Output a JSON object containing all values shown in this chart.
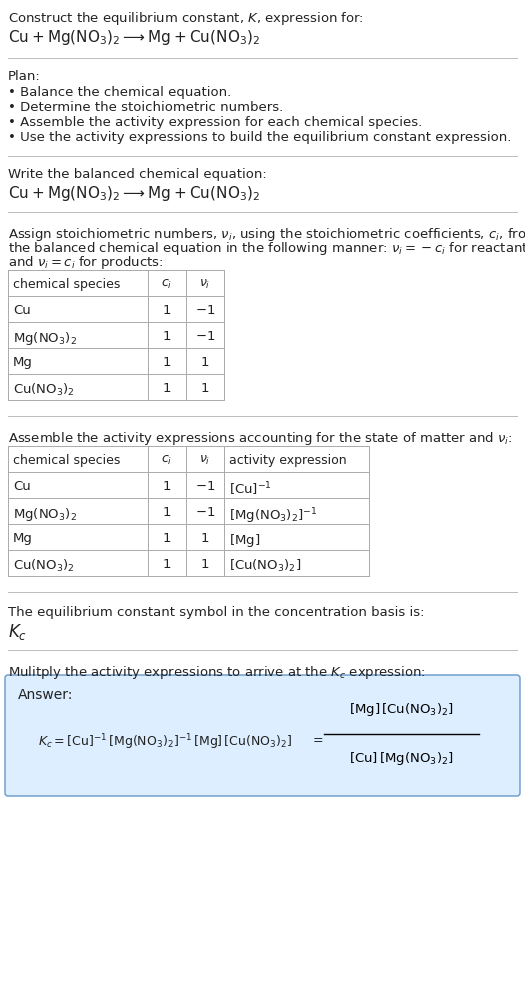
{
  "bg_color": "#ffffff",
  "text_color": "#000000",
  "title_line1": "Construct the equilibrium constant, $K$, expression for:",
  "title_line2": "$\\mathrm{Cu + Mg(NO_3)_2 \\longrightarrow Mg + Cu(NO_3)_2}$",
  "plan_header": "Plan:",
  "plan_items": [
    "• Balance the chemical equation.",
    "• Determine the stoichiometric numbers.",
    "• Assemble the activity expression for each chemical species.",
    "• Use the activity expressions to build the equilibrium constant expression."
  ],
  "section2_header": "Write the balanced chemical equation:",
  "section2_eq": "$\\mathrm{Cu + Mg(NO_3)_2 \\longrightarrow Mg + Cu(NO_3)_2}$",
  "section3_text1": "Assign stoichiometric numbers, $\\nu_i$, using the stoichiometric coefficients, $c_i$, from",
  "section3_text2": "the balanced chemical equation in the following manner: $\\nu_i = -c_i$ for reactants",
  "section3_text3": "and $\\nu_i = c_i$ for products:",
  "table1_headers": [
    "chemical species",
    "$c_i$",
    "$\\nu_i$"
  ],
  "table1_rows": [
    [
      "Cu",
      "1",
      "$-1$"
    ],
    [
      "$\\mathrm{Mg(NO_3)_2}$",
      "1",
      "$-1$"
    ],
    [
      "Mg",
      "1",
      "1"
    ],
    [
      "$\\mathrm{Cu(NO_3)_2}$",
      "1",
      "1"
    ]
  ],
  "section4_text": "Assemble the activity expressions accounting for the state of matter and $\\nu_i$:",
  "table2_headers": [
    "chemical species",
    "$c_i$",
    "$\\nu_i$",
    "activity expression"
  ],
  "table2_rows": [
    [
      "Cu",
      "1",
      "$-1$",
      "$[\\mathrm{Cu}]^{-1}$"
    ],
    [
      "$\\mathrm{Mg(NO_3)_2}$",
      "1",
      "$-1$",
      "$[\\mathrm{Mg(NO_3)_2}]^{-1}$"
    ],
    [
      "Mg",
      "1",
      "1",
      "$[\\mathrm{Mg}]$"
    ],
    [
      "$\\mathrm{Cu(NO_3)_2}$",
      "1",
      "1",
      "$[\\mathrm{Cu(NO_3)_2}]$"
    ]
  ],
  "section5_text1": "The equilibrium constant symbol in the concentration basis is:",
  "section5_Kc": "$K_c$",
  "section6_text": "Mulitply the activity expressions to arrive at the $K_c$ expression:",
  "answer_label": "Answer:",
  "answer_eq_left": "$K_c = [\\mathrm{Cu}]^{-1}\\,[\\mathrm{Mg(NO_3)_2}]^{-1}\\,[\\mathrm{Mg}]\\,[\\mathrm{Cu(NO_3)_2}]$",
  "answer_eq_equals": "$=$",
  "answer_frac_num": "$[\\mathrm{Mg}]\\,[\\mathrm{Cu(NO_3)_2}]$",
  "answer_frac_den": "$[\\mathrm{Cu}]\\,[\\mathrm{Mg(NO_3)_2}]$",
  "answer_box_color": "#dceeff",
  "answer_box_border": "#6699cc",
  "separator_color": "#bbbbbb",
  "table_border_color": "#aaaaaa"
}
